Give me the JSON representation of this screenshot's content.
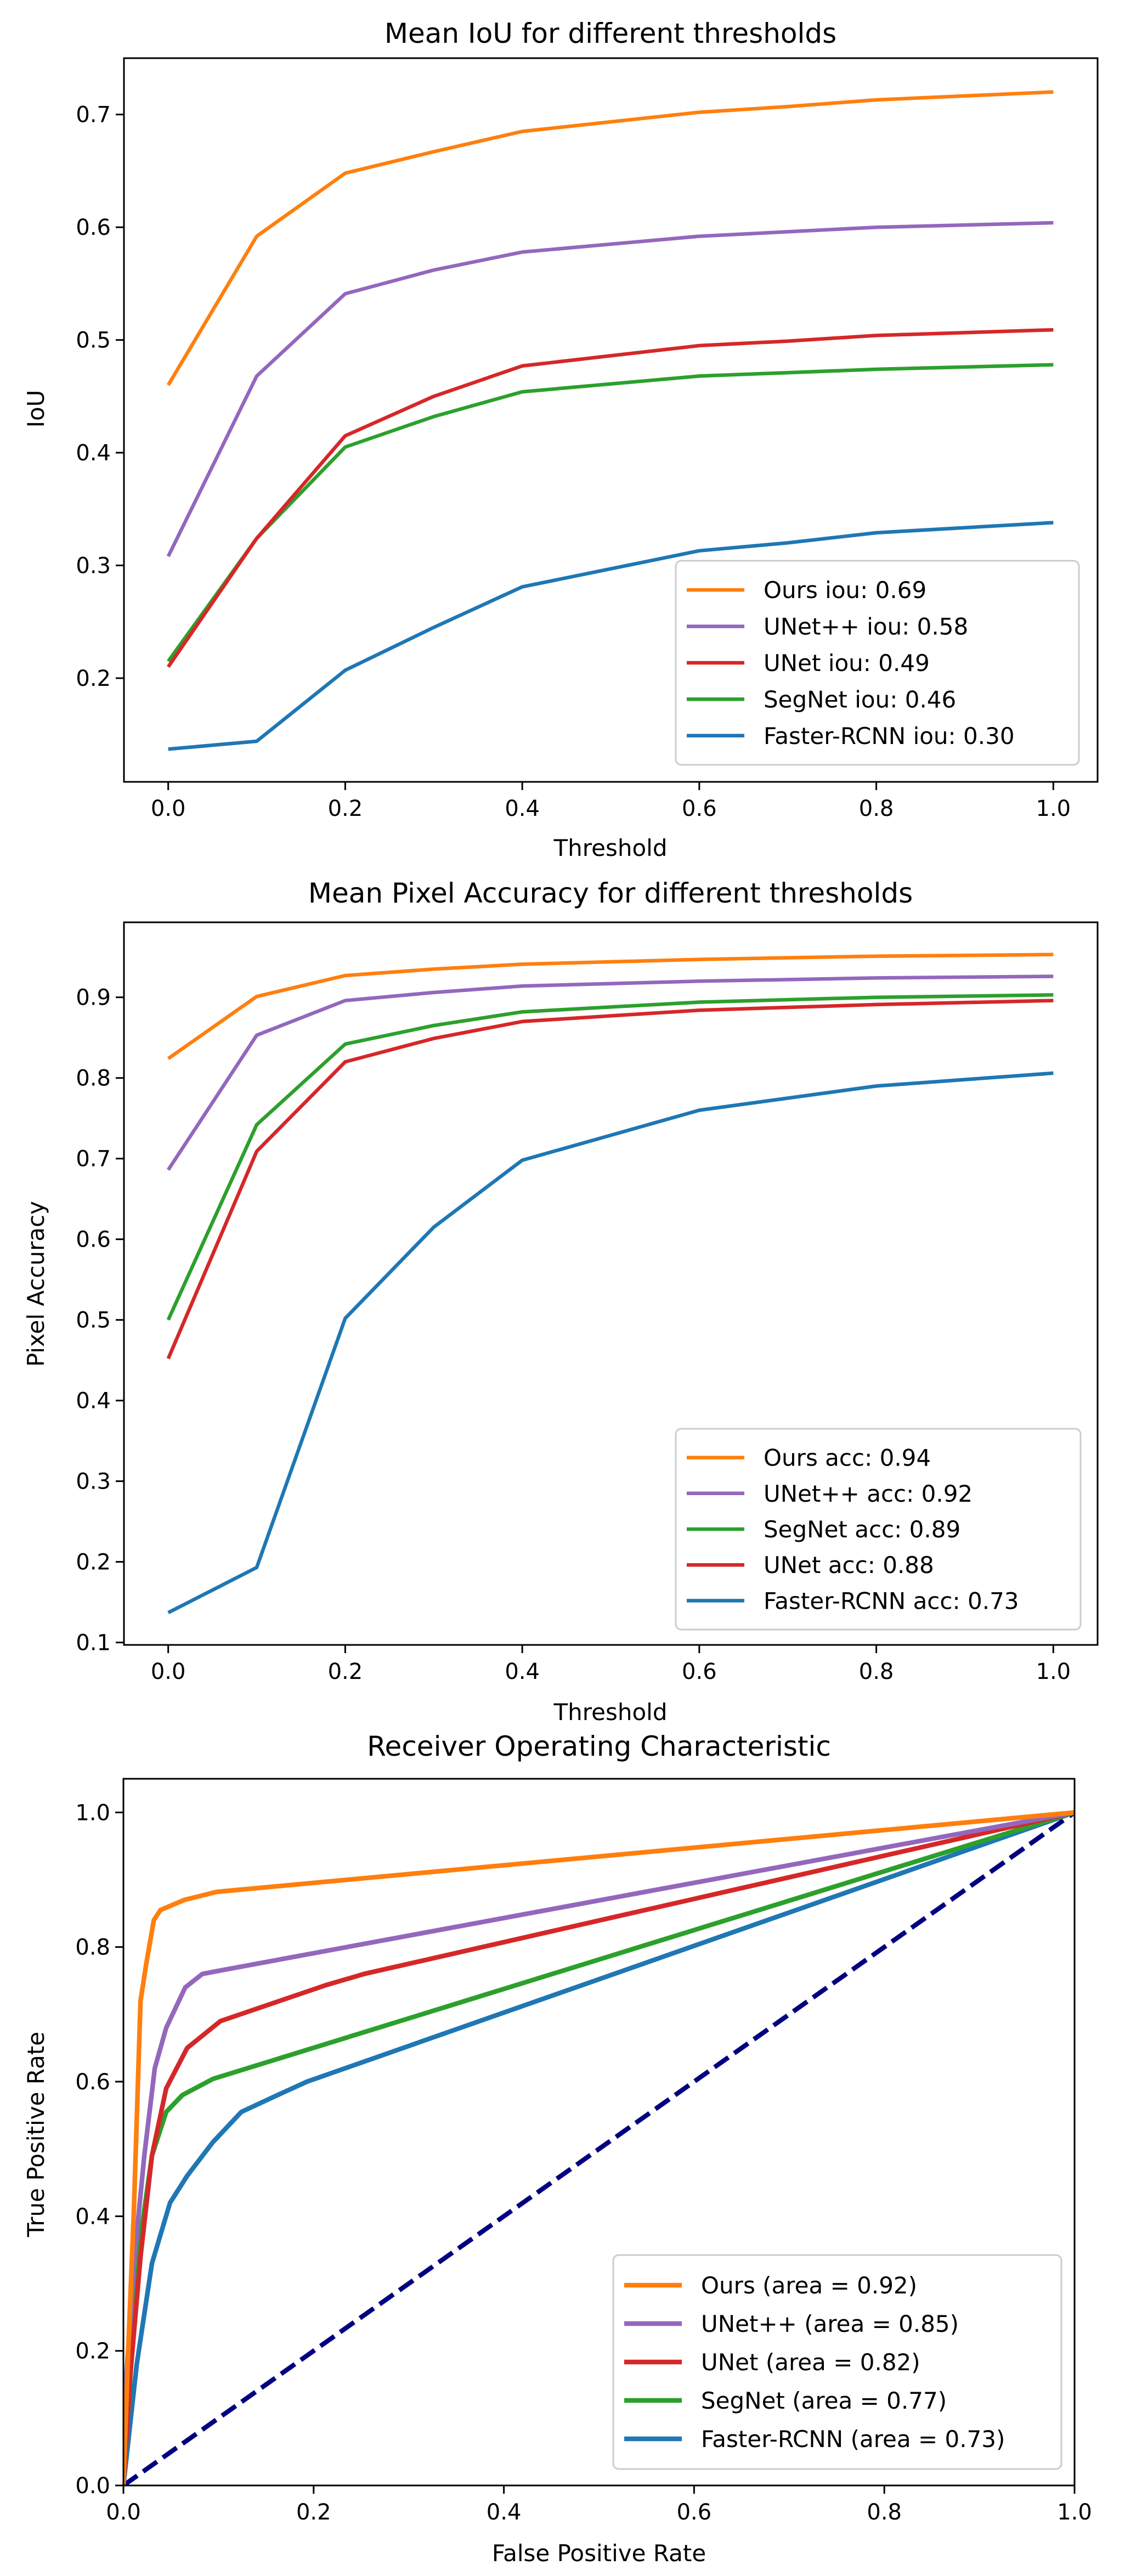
{
  "chart_data": [
    {
      "type": "line",
      "title": "Mean IoU for different thresholds",
      "xlabel": "Threshold",
      "ylabel": "IoU",
      "xlim": [
        -0.05,
        1.05
      ],
      "ylim": [
        0.108,
        0.75
      ],
      "xticks": [
        "0.0",
        "0.2",
        "0.4",
        "0.6",
        "0.8",
        "1.0"
      ],
      "yticks": [
        "0.2",
        "0.3",
        "0.4",
        "0.5",
        "0.6",
        "0.7"
      ],
      "grid": false,
      "legend_position": "bottom-right",
      "x": [
        0.0,
        0.1,
        0.2,
        0.3,
        0.4,
        0.6,
        0.7,
        0.8,
        1.0
      ],
      "series": [
        {
          "name": "Ours iou: 0.69",
          "color": "#ff7f0e",
          "values": [
            0.46,
            0.592,
            0.648,
            0.667,
            0.685,
            0.702,
            0.707,
            0.713,
            0.72
          ]
        },
        {
          "name": "UNet++ iou: 0.58",
          "color": "#9467bd",
          "values": [
            0.308,
            0.468,
            0.541,
            0.562,
            0.578,
            0.592,
            0.596,
            0.6,
            0.604
          ]
        },
        {
          "name": "UNet iou: 0.49",
          "color": "#d62728",
          "values": [
            0.21,
            0.324,
            0.415,
            0.45,
            0.477,
            0.495,
            0.499,
            0.504,
            0.509
          ]
        },
        {
          "name": "SegNet iou: 0.46",
          "color": "#2ca02c",
          "values": [
            0.215,
            0.324,
            0.405,
            0.432,
            0.454,
            0.468,
            0.471,
            0.474,
            0.478
          ]
        },
        {
          "name": "Faster-RCNN iou: 0.30",
          "color": "#1f77b4",
          "values": [
            0.137,
            0.144,
            0.207,
            0.245,
            0.281,
            0.313,
            0.32,
            0.329,
            0.338
          ]
        }
      ]
    },
    {
      "type": "line",
      "title": "Mean Pixel Accuracy for different thresholds",
      "xlabel": "Threshold",
      "ylabel": "Pixel Accuracy",
      "xlim": [
        -0.05,
        1.05
      ],
      "ylim": [
        0.097,
        0.993
      ],
      "xticks": [
        "0.0",
        "0.2",
        "0.4",
        "0.6",
        "0.8",
        "1.0"
      ],
      "yticks": [
        "0.1",
        "0.2",
        "0.3",
        "0.4",
        "0.5",
        "0.6",
        "0.7",
        "0.8",
        "0.9"
      ],
      "grid": false,
      "legend_position": "bottom-right",
      "x": [
        0.0,
        0.1,
        0.2,
        0.3,
        0.4,
        0.6,
        0.8,
        1.0
      ],
      "series": [
        {
          "name": "Ours acc: 0.94",
          "color": "#ff7f0e",
          "values": [
            0.824,
            0.901,
            0.927,
            0.935,
            0.941,
            0.947,
            0.951,
            0.953
          ]
        },
        {
          "name": "UNet++ acc: 0.92",
          "color": "#9467bd",
          "values": [
            0.686,
            0.853,
            0.896,
            0.906,
            0.914,
            0.92,
            0.924,
            0.926
          ]
        },
        {
          "name": "SegNet acc: 0.89",
          "color": "#2ca02c",
          "values": [
            0.5,
            0.742,
            0.842,
            0.865,
            0.882,
            0.894,
            0.9,
            0.903
          ]
        },
        {
          "name": "UNet acc: 0.88",
          "color": "#d62728",
          "values": [
            0.452,
            0.709,
            0.82,
            0.849,
            0.87,
            0.884,
            0.891,
            0.896
          ]
        },
        {
          "name": "Faster-RCNN acc: 0.73",
          "color": "#1f77b4",
          "values": [
            0.137,
            0.193,
            0.502,
            0.615,
            0.698,
            0.76,
            0.79,
            0.806
          ]
        }
      ]
    },
    {
      "type": "line",
      "title": "Receiver Operating Characteristic",
      "xlabel": "False Positive Rate",
      "ylabel": "True Positive Rate",
      "xlim": [
        0.0,
        1.0
      ],
      "ylim": [
        0.0,
        1.05
      ],
      "xticks": [
        "0.0",
        "0.2",
        "0.4",
        "0.6",
        "0.8",
        "1.0"
      ],
      "yticks": [
        "0.0",
        "0.2",
        "0.4",
        "0.6",
        "0.8",
        "1.0"
      ],
      "grid": false,
      "legend_position": "bottom-right",
      "diagonal": {
        "color": "#000080",
        "style": "dashed",
        "points": [
          [
            0,
            0
          ],
          [
            1,
            1
          ]
        ]
      },
      "series": [
        {
          "name": "Ours (area = 0.92)",
          "color": "#ff7f0e",
          "points": [
            [
              0,
              0
            ],
            [
              0.005,
              0.2
            ],
            [
              0.011,
              0.41
            ],
            [
              0.018,
              0.72
            ],
            [
              0.024,
              0.775
            ],
            [
              0.032,
              0.84
            ],
            [
              0.039,
              0.855
            ],
            [
              0.064,
              0.87
            ],
            [
              0.098,
              0.882
            ],
            [
              1,
              1
            ]
          ]
        },
        {
          "name": "UNet++ (area = 0.85)",
          "color": "#9467bd",
          "points": [
            [
              0,
              0
            ],
            [
              0.003,
              0.16
            ],
            [
              0.011,
              0.33
            ],
            [
              0.022,
              0.49
            ],
            [
              0.033,
              0.62
            ],
            [
              0.045,
              0.68
            ],
            [
              0.065,
              0.74
            ],
            [
              0.083,
              0.76
            ],
            [
              0.105,
              0.766
            ],
            [
              1,
              1
            ]
          ]
        },
        {
          "name": "UNet (area = 0.82)",
          "color": "#d62728",
          "points": [
            [
              0,
              0
            ],
            [
              0.007,
              0.16
            ],
            [
              0.018,
              0.34
            ],
            [
              0.03,
              0.49
            ],
            [
              0.045,
              0.59
            ],
            [
              0.067,
              0.65
            ],
            [
              0.102,
              0.69
            ],
            [
              0.212,
              0.743
            ],
            [
              0.253,
              0.76
            ],
            [
              1,
              1
            ]
          ]
        },
        {
          "name": "SegNet (area = 0.77)",
          "color": "#2ca02c",
          "points": [
            [
              0,
              0
            ],
            [
              0.009,
              0.2
            ],
            [
              0.018,
              0.37
            ],
            [
              0.03,
              0.49
            ],
            [
              0.045,
              0.555
            ],
            [
              0.062,
              0.58
            ],
            [
              0.094,
              0.604
            ],
            [
              1,
              1
            ]
          ]
        },
        {
          "name": "Faster-RCNN (area = 0.73)",
          "color": "#1f77b4",
          "points": [
            [
              0,
              0
            ],
            [
              0.014,
              0.18
            ],
            [
              0.03,
              0.33
            ],
            [
              0.049,
              0.42
            ],
            [
              0.067,
              0.46
            ],
            [
              0.094,
              0.51
            ],
            [
              0.124,
              0.555
            ],
            [
              0.162,
              0.58
            ],
            [
              0.193,
              0.6
            ],
            [
              1,
              1
            ]
          ]
        }
      ]
    }
  ]
}
